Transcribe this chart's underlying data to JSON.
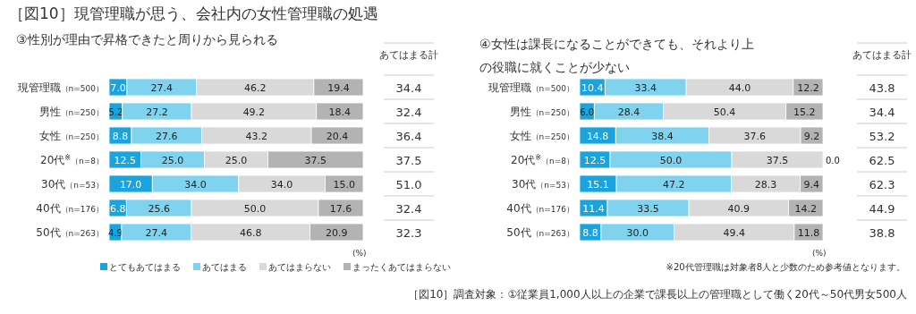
{
  "chart_data": [
    {
      "type": "bar",
      "orientation": "horizontal",
      "stacked": true,
      "title": "［図10］現管理職が思う、会社内の女性管理職の処遇",
      "subtitle": "③性別が理由で昇格できたと周りから見られる",
      "categories": [
        "現管理職（n=500）",
        "男性（n=250）",
        "女性（n=250）",
        "20代$^{※}$（n=8）",
        "30代（n=53）",
        "40代（n=176）",
        "50代（n=263）"
      ],
      "series": [
        {
          "name": "とてもあてはまる",
          "color": "#1aa3dc",
          "values": [
            7.0,
            5.2,
            8.8,
            12.5,
            17.0,
            6.8,
            4.9
          ],
          "value_labels": [
            "7.0",
            "5.2",
            "8.8",
            "12.5",
            "17.0",
            "6.8",
            "4.9"
          ]
        },
        {
          "name": "あてはまる",
          "color": "#7fd3ef",
          "values": [
            27.4,
            27.2,
            27.6,
            25.0,
            34.0,
            25.6,
            27.4
          ],
          "value_labels": [
            "27.4",
            "27.2",
            "27.6",
            "25.0",
            "34.0",
            "25.6",
            "27.4"
          ]
        },
        {
          "name": "あてはまらない",
          "color": "#d9d9d9",
          "values": [
            46.2,
            49.2,
            43.2,
            25.0,
            34.0,
            50.0,
            46.8
          ],
          "value_labels": [
            "46.2",
            "49.2",
            "43.2",
            "25.0",
            "34.0",
            "50.0",
            "46.8"
          ]
        },
        {
          "name": "まったくあてはまらない",
          "color": "#b3b3b3",
          "values": [
            19.4,
            18.4,
            20.4,
            37.5,
            15.0,
            17.6,
            20.9
          ],
          "value_labels": [
            "19.4",
            "18.4",
            "20.4",
            "37.5",
            "15.0",
            "17.6",
            "20.9"
          ]
        }
      ],
      "xlim": [
        0,
        100
      ],
      "tick_labels": "y",
      "legend": "bottom",
      "annotations": [
        "(%)"
      ]
    },
    {
      "type": "other",
      "title": "あてはまる計",
      "categories": [
        null,
        null,
        null,
        null,
        null,
        null,
        null
      ],
      "value_labels": [
        "34.4",
        "32.4",
        "36.4",
        "37.5",
        "51.0",
        "32.4",
        "32.3"
      ]
    },
    {
      "type": "bar",
      "orientation": "horizontal",
      "stacked": true,
      "title": "④女性は課長になることができても、それより上の役職に就くことが少ない",
      "categories": [
        "現管理職（n=500）",
        "男性（n=250）",
        "女性（n=250）",
        "20代$^{※}$（n=8）",
        "30代（n=53）",
        "40代（n=176）",
        "50代（n=263）"
      ],
      "series": [
        {
          "color": "#1aa3dc",
          "values": [
            10.4,
            6.0,
            14.8,
            12.5,
            15.1,
            11.4,
            8.8
          ],
          "value_labels": [
            "10.4",
            "6.0",
            "14.8",
            "12.5",
            "15.1",
            "11.4",
            "8.8"
          ]
        },
        {
          "color": "#7fd3ef",
          "values": [
            33.4,
            28.4,
            38.4,
            50.0,
            47.2,
            33.5,
            30.0
          ],
          "value_labels": [
            "33.4",
            "28.4",
            "38.4",
            "50.0",
            "47.2",
            "33.5",
            "30.0"
          ]
        },
        {
          "color": "#d9d9d9",
          "values": [
            44.0,
            50.4,
            37.6,
            37.5,
            28.3,
            40.9,
            49.4
          ],
          "value_labels": [
            "44.0",
            "50.4",
            "37.6",
            "37.5",
            "28.3",
            "40.9",
            "49.4"
          ]
        },
        {
          "color": "#b3b3b3",
          "values": [
            12.2,
            15.2,
            9.2,
            0.0,
            9.4,
            14.2,
            11.8
          ],
          "value_labels": [
            "12.2",
            "15.2",
            "9.2",
            "0.0",
            "9.4",
            "14.2",
            "11.8"
          ]
        }
      ],
      "xlim": [
        0,
        100
      ],
      "tick_labels": "y",
      "annotations": [
        "(%)",
        "※20代管理職は対象者8人と少数のため参考値となります。",
        "［図10］調査対象：①従業員1,000人以上の企業で課長以上の管理職として働く20代～50代男女500人"
      ]
    },
    {
      "type": "other",
      "title": "あてはまる計",
      "categories": [
        null,
        null,
        null,
        null,
        null,
        null,
        null
      ],
      "value_labels": [
        "43.8",
        "34.4",
        "53.2",
        "62.5",
        "62.3",
        "44.9",
        "38.8"
      ]
    }
  ]
}
